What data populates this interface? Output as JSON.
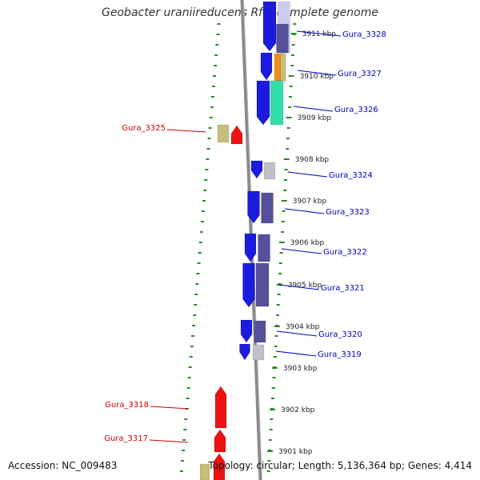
{
  "title": "Geobacter uraniireducens Rf4, complete genome",
  "footer": {
    "accession": "Accession: NC_009483",
    "summary": "Topology: circular; Length: 5,136,364 bp; Genes: 4,414"
  },
  "colors": {
    "scale": "#2a8a2a",
    "backbone": "#8a8a8a",
    "label_forward": "#0000c0",
    "label_reverse": "#cc0000",
    "cds_forward": "#1b1bdd",
    "cds_reverse": "#ee1111",
    "cog_purple": "#55509a",
    "cog_khaki": "#c8bd7a",
    "cog_orange": "#ee8e1a",
    "cog_teal": "#33ddaa",
    "cog_grey": "#c0c0c8",
    "cog_lavender": "#cccdee"
  },
  "ticks": [
    {
      "label": "3911 kbp"
    },
    {
      "label": "3910 kbp"
    },
    {
      "label": "3909 kbp"
    },
    {
      "label": "3908 kbp"
    },
    {
      "label": "3907 kbp"
    },
    {
      "label": "3906 kbp"
    },
    {
      "label": "3905 kbp"
    },
    {
      "label": "3904 kbp"
    },
    {
      "label": "3903 kbp"
    },
    {
      "label": "3902 kbp"
    },
    {
      "label": "3901 kbp"
    }
  ],
  "genes": [
    {
      "name": "Gura_3328",
      "strand": "+",
      "cog": "cog_purple"
    },
    {
      "name": "Gura_3327",
      "strand": "+",
      "cog": "cog_orange"
    },
    {
      "name": "Gura_3326",
      "strand": "+",
      "cog": "cog_teal"
    },
    {
      "name": "Gura_3325",
      "strand": "-",
      "cog": "cog_khaki"
    },
    {
      "name": "Gura_3324",
      "strand": "+",
      "cog": "cog_grey"
    },
    {
      "name": "Gura_3323",
      "strand": "+",
      "cog": "cog_purple"
    },
    {
      "name": "Gura_3322",
      "strand": "+",
      "cog": "cog_purple"
    },
    {
      "name": "Gura_3321",
      "strand": "+",
      "cog": "cog_purple"
    },
    {
      "name": "Gura_3320",
      "strand": "+",
      "cog": "cog_purple"
    },
    {
      "name": "Gura_3319",
      "strand": "+",
      "cog": "cog_grey"
    },
    {
      "name": "Gura_3318",
      "strand": "-",
      "cog": null
    },
    {
      "name": "Gura_3317",
      "strand": "-",
      "cog": null
    }
  ]
}
